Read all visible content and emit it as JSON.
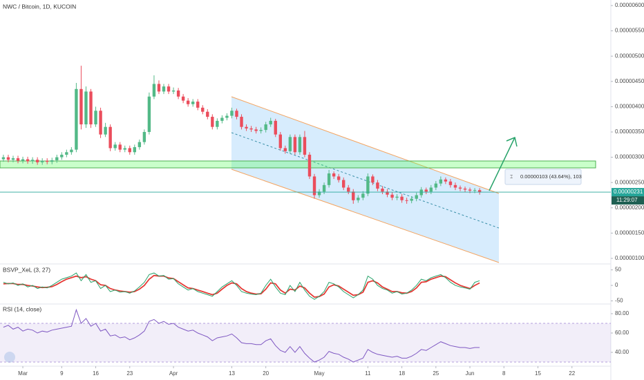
{
  "chart_data": [
    {
      "type": "candlestick",
      "title": "NWC / Bitcoin, 1D, KUCOIN",
      "up_color": "#53b987",
      "down_color": "#eb4d5c",
      "open": [
        2.96e-06,
        3e-06,
        2.95e-06,
        2.98e-06,
        2.93e-06,
        2.96e-06,
        2.92e-06,
        2.95e-06,
        2.9e-06,
        2.93e-06,
        2.91e-06,
        2.94e-06,
        3e-06,
        3.05e-06,
        3.1e-06,
        3.15e-06,
        4.35e-06,
        3.65e-06,
        4.3e-06,
        3.65e-06,
        3.92e-06,
        3.45e-06,
        3.6e-06,
        3.18e-06,
        3.25e-06,
        3.15e-06,
        3.18e-06,
        3.1e-06,
        3.2e-06,
        3.3e-06,
        3.5e-06,
        4.2e-06,
        4.45e-06,
        4.3e-06,
        4.4e-06,
        4.3e-06,
        4.32e-06,
        4.2e-06,
        4.12e-06,
        4.05e-06,
        4.1e-06,
        3.98e-06,
        3.9e-06,
        3.8e-06,
        3.6e-06,
        3.72e-06,
        3.78e-06,
        3.82e-06,
        3.92e-06,
        3.8e-06,
        3.6e-06,
        3.57e-06,
        3.55e-06,
        3.52e-06,
        3.54e-06,
        3.65e-06,
        3.72e-06,
        3.45e-06,
        3.18e-06,
        3.12e-06,
        3.4e-06,
        3.1e-06,
        3.4e-06,
        3.05e-06,
        2.62e-06,
        2.25e-06,
        2.32e-06,
        2.45e-06,
        2.68e-06,
        2.62e-06,
        2.55e-06,
        2.4e-06,
        2.32e-06,
        2.15e-06,
        2.2e-06,
        2.28e-06,
        2.62e-06,
        2.5e-06,
        2.38e-06,
        2.32e-06,
        2.26e-06,
        2.2e-06,
        2.22e-06,
        2.15e-06,
        2.14e-06,
        2.18e-06,
        2.25e-06,
        2.36e-06,
        2.32e-06,
        2.4e-06,
        2.48e-06,
        2.56e-06,
        2.52e-06,
        2.45e-06,
        2.4e-06,
        2.38e-06,
        2.36e-06,
        2.34e-06,
        2.35e-06
      ],
      "high": [
        3.05e-06,
        3.05e-06,
        3.03e-06,
        3.03e-06,
        3.01e-06,
        3.01e-06,
        3e-06,
        3e-06,
        2.98e-06,
        2.98e-06,
        2.99e-06,
        3.05e-06,
        3.1e-06,
        3.15e-06,
        3.2e-06,
        4.47e-06,
        4.81e-06,
        4.4e-06,
        4.35e-06,
        4e-06,
        3.98e-06,
        3.68e-06,
        3.65e-06,
        3.3e-06,
        3.3e-06,
        3.23e-06,
        3.23e-06,
        3.25e-06,
        3.35e-06,
        3.55e-06,
        4.28e-06,
        4.62e-06,
        4.52e-06,
        4.45e-06,
        4.45e-06,
        4.38e-06,
        4.37e-06,
        4.25e-06,
        4.17e-06,
        4.15e-06,
        4.15e-06,
        4.03e-06,
        3.95e-06,
        3.85e-06,
        3.77e-06,
        3.83e-06,
        3.87e-06,
        3.98e-06,
        3.96e-06,
        3.85e-06,
        3.65e-06,
        3.62e-06,
        3.6e-06,
        3.59e-06,
        3.7e-06,
        3.78e-06,
        3.76e-06,
        3.5e-06,
        3.23e-06,
        3.45e-06,
        3.45e-06,
        3.45e-06,
        3.52e-06,
        3.1e-06,
        2.67e-06,
        2.37e-06,
        2.5e-06,
        2.75e-06,
        2.72e-06,
        2.67e-06,
        2.6e-06,
        2.45e-06,
        2.37e-06,
        2.25e-06,
        2.33e-06,
        2.68e-06,
        2.66e-06,
        2.55e-06,
        2.43e-06,
        2.37e-06,
        2.31e-06,
        2.27e-06,
        2.27e-06,
        2.2e-06,
        2.23e-06,
        2.3e-06,
        2.41e-06,
        2.4e-06,
        2.45e-06,
        2.53e-06,
        2.62e-06,
        2.6e-06,
        2.57e-06,
        2.5e-06,
        2.44e-06,
        2.42e-06,
        2.4e-06,
        2.39e-06,
        2.39e-06
      ],
      "low": [
        2.91e-06,
        2.9e-06,
        2.9e-06,
        2.88e-06,
        2.88e-06,
        2.87e-06,
        2.87e-06,
        2.85e-06,
        2.85e-06,
        2.86e-06,
        2.86e-06,
        2.89e-06,
        2.95e-06,
        3e-06,
        3.05e-06,
        3.1e-06,
        3.55e-06,
        3.58e-06,
        3.58e-06,
        3.6e-06,
        3.38e-06,
        3.4e-06,
        3.12e-06,
        3.13e-06,
        3.1e-06,
        3.1e-06,
        3.05e-06,
        3.05e-06,
        3.15e-06,
        3.25e-06,
        3.45e-06,
        4.15e-06,
        4.25e-06,
        4.25e-06,
        4.25e-06,
        4.25e-06,
        4.15e-06,
        4.07e-06,
        4e-06,
        4e-06,
        3.93e-06,
        3.85e-06,
        3.75e-06,
        3.55e-06,
        3.55e-06,
        3.67e-06,
        3.73e-06,
        3.77e-06,
        3.75e-06,
        3.55e-06,
        3.52e-06,
        3.5e-06,
        3.47e-06,
        3.47e-06,
        3.49e-06,
        3.6e-06,
        3.4e-06,
        3.13e-06,
        3.07e-06,
        3.07e-06,
        3.05e-06,
        3.05e-06,
        3e-06,
        2.57e-06,
        2.18e-06,
        2.2e-06,
        2.27e-06,
        2.4e-06,
        2.57e-06,
        2.5e-06,
        2.35e-06,
        2.27e-06,
        2.08e-06,
        2.1e-06,
        2.15e-06,
        2.23e-06,
        2.45e-06,
        2.33e-06,
        2.27e-06,
        2.21e-06,
        2.15e-06,
        2.15e-06,
        2.1e-06,
        2.08e-06,
        2.09e-06,
        2.13e-06,
        2.2e-06,
        2.27e-06,
        2.27e-06,
        2.35e-06,
        2.43e-06,
        2.47e-06,
        2.4e-06,
        2.35e-06,
        2.33e-06,
        2.31e-06,
        2.29e-06,
        2.29e-06,
        2.26e-06
      ],
      "close": [
        3e-06,
        2.95e-06,
        2.98e-06,
        2.93e-06,
        2.96e-06,
        2.92e-06,
        2.95e-06,
        2.9e-06,
        2.93e-06,
        2.91e-06,
        2.94e-06,
        3e-06,
        3.05e-06,
        3.1e-06,
        3.15e-06,
        4.35e-06,
        3.65e-06,
        4.3e-06,
        3.65e-06,
        3.92e-06,
        3.45e-06,
        3.6e-06,
        3.18e-06,
        3.25e-06,
        3.15e-06,
        3.18e-06,
        3.1e-06,
        3.2e-06,
        3.3e-06,
        3.5e-06,
        4.2e-06,
        4.45e-06,
        4.3e-06,
        4.4e-06,
        4.3e-06,
        4.32e-06,
        4.2e-06,
        4.12e-06,
        4.05e-06,
        4.1e-06,
        3.98e-06,
        3.9e-06,
        3.8e-06,
        3.6e-06,
        3.72e-06,
        3.78e-06,
        3.82e-06,
        3.92e-06,
        3.8e-06,
        3.6e-06,
        3.57e-06,
        3.55e-06,
        3.52e-06,
        3.54e-06,
        3.65e-06,
        3.72e-06,
        3.45e-06,
        3.18e-06,
        3.12e-06,
        3.4e-06,
        3.1e-06,
        3.4e-06,
        3.05e-06,
        2.62e-06,
        2.25e-06,
        2.32e-06,
        2.45e-06,
        2.68e-06,
        2.62e-06,
        2.55e-06,
        2.4e-06,
        2.32e-06,
        2.15e-06,
        2.2e-06,
        2.28e-06,
        2.62e-06,
        2.5e-06,
        2.38e-06,
        2.32e-06,
        2.26e-06,
        2.2e-06,
        2.22e-06,
        2.15e-06,
        2.14e-06,
        2.18e-06,
        2.25e-06,
        2.36e-06,
        2.32e-06,
        2.4e-06,
        2.48e-06,
        2.56e-06,
        2.52e-06,
        2.45e-06,
        2.4e-06,
        2.38e-06,
        2.36e-06,
        2.34e-06,
        2.35e-06,
        2.31e-06
      ],
      "ylim": [
        8.9e-07,
        6.11e-06
      ],
      "yticks": [
        {
          "value": 6e-06,
          "label": "0.00000600"
        },
        {
          "value": 5.5e-06,
          "label": "0.00000550"
        },
        {
          "value": 5e-06,
          "label": "0.00000500"
        },
        {
          "value": 4.5e-06,
          "label": "0.00000450"
        },
        {
          "value": 4e-06,
          "label": "0.00000400"
        },
        {
          "value": 3.5e-06,
          "label": "0.00000350"
        },
        {
          "value": 3e-06,
          "label": "0.00000300"
        },
        {
          "value": 2.5e-06,
          "label": "0.00000250"
        },
        {
          "value": 2e-06,
          "label": "0.00000200"
        },
        {
          "value": 1.5e-06,
          "label": "0.00000150"
        },
        {
          "value": 1e-06,
          "label": "0.00000100"
        }
      ],
      "last_price": {
        "value": 2.31e-06,
        "label": "0.00000231"
      },
      "countdown": "11:29:07",
      "annotation": "0.00000103 (43.64%), 103"
    },
    {
      "type": "line",
      "title": "BSVP_XeL (3, 27)",
      "series": [
        {
          "color": "#e53935",
          "values": [
            5,
            6,
            6,
            3,
            3,
            0,
            -2,
            -5,
            -7,
            -6,
            -4,
            3,
            12,
            20,
            25,
            30,
            25,
            28,
            20,
            15,
            2,
            0,
            -10,
            -15,
            -18,
            -20,
            -22,
            -20,
            -12,
            0,
            20,
            32,
            30,
            30,
            24,
            22,
            12,
            2,
            -8,
            -10,
            -15,
            -20,
            -25,
            -30,
            -25,
            -12,
            0,
            8,
            5,
            -10,
            -20,
            -25,
            -28,
            -27,
            -12,
            8,
            5,
            -15,
            -25,
            -12,
            -15,
            -2,
            -8,
            -25,
            -38,
            -36,
            -28,
            -5,
            2,
            -2,
            -12,
            -22,
            -32,
            -30,
            -22,
            10,
            15,
            8,
            -5,
            -12,
            -20,
            -20,
            -24,
            -25,
            -20,
            -8,
            10,
            12,
            20,
            25,
            30,
            28,
            18,
            8,
            0,
            -5,
            -10,
            0,
            8
          ]
        },
        {
          "color": "#26a269",
          "values": [
            10,
            5,
            8,
            0,
            5,
            -5,
            0,
            -10,
            -5,
            -8,
            0,
            10,
            20,
            25,
            30,
            40,
            15,
            35,
            10,
            15,
            -10,
            0,
            -20,
            -15,
            -22,
            -20,
            -25,
            -18,
            -5,
            10,
            35,
            40,
            30,
            32,
            20,
            22,
            5,
            -5,
            -15,
            -10,
            -20,
            -25,
            -30,
            -35,
            -20,
            -5,
            5,
            15,
            0,
            -20,
            -25,
            -28,
            -30,
            -25,
            0,
            20,
            -5,
            -25,
            -30,
            0,
            -20,
            10,
            -15,
            -35,
            -45,
            -35,
            -20,
            10,
            5,
            -5,
            -20,
            -30,
            -40,
            -30,
            -15,
            30,
            20,
            0,
            -10,
            -15,
            -25,
            -20,
            -28,
            -25,
            -15,
            0,
            20,
            15,
            25,
            30,
            35,
            25,
            10,
            0,
            -5,
            -8,
            -12,
            10,
            15
          ]
        }
      ],
      "ylim": [
        -60,
        67
      ],
      "yticks": [
        50,
        0,
        -50
      ]
    },
    {
      "type": "line",
      "title": "RSI (14, close)",
      "series": [
        {
          "color": "#7e57c2",
          "values": [
            66,
            68,
            64,
            66,
            62,
            64,
            63,
            60,
            62,
            61,
            63,
            64,
            65,
            66,
            67,
            84,
            70,
            75,
            67,
            70,
            62,
            64,
            57,
            58,
            55,
            56,
            53,
            55,
            58,
            62,
            72,
            74,
            70,
            72,
            69,
            70,
            66,
            64,
            62,
            63,
            60,
            58,
            56,
            52,
            55,
            56,
            57,
            59,
            55,
            50,
            49,
            49,
            48,
            48,
            52,
            54,
            47,
            42,
            40,
            46,
            40,
            46,
            39,
            34,
            30,
            32,
            35,
            41,
            39,
            38,
            35,
            33,
            30,
            32,
            34,
            43,
            40,
            38,
            37,
            36,
            35,
            36,
            34,
            34,
            36,
            39,
            43,
            42,
            45,
            48,
            51,
            49,
            47,
            46,
            45,
            45,
            44,
            45,
            45
          ]
        }
      ],
      "band": [
        30,
        70
      ],
      "ylim": [
        25.7,
        89.3
      ],
      "yticks": [
        {
          "value": 80,
          "label": "80.00"
        },
        {
          "value": 60,
          "label": "60.00"
        },
        {
          "value": 40,
          "label": "40.00"
        }
      ],
      "xlim": [
        -0.7,
        125
      ],
      "xticks": [
        {
          "value": 4,
          "label": "Mar"
        },
        {
          "value": 12,
          "label": "9"
        },
        {
          "value": 19,
          "label": "16"
        },
        {
          "value": 26,
          "label": "23"
        },
        {
          "value": 35,
          "label": "Apr"
        },
        {
          "value": 47,
          "label": "13"
        },
        {
          "value": 54,
          "label": "20"
        },
        {
          "value": 65,
          "label": "May"
        },
        {
          "value": 75,
          "label": "11"
        },
        {
          "value": 82,
          "label": "18"
        },
        {
          "value": 89,
          "label": "25"
        },
        {
          "value": 96,
          "label": "Jun"
        },
        {
          "value": 103,
          "label": "8"
        },
        {
          "value": 110,
          "label": "15"
        },
        {
          "value": 117,
          "label": "22"
        }
      ]
    }
  ]
}
